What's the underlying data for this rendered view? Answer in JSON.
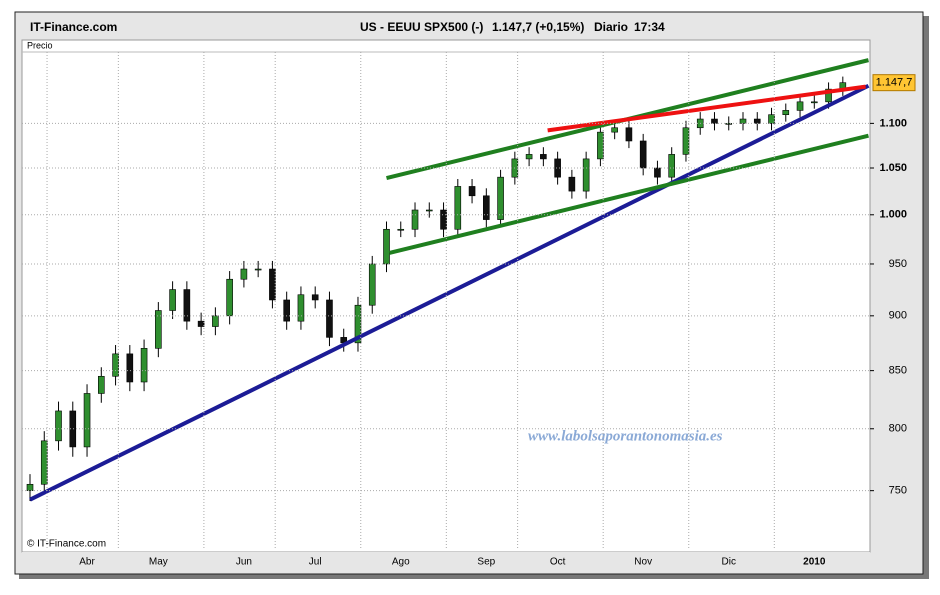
{
  "header": {
    "site": "IT-Finance.com",
    "title": "US - EEUU SPX500 (-)",
    "quote": "1.147,7 (+0,15%)",
    "period": "Diario",
    "time": "17:34"
  },
  "chart_data": {
    "type": "candlestick",
    "ylabel": "Precio",
    "copyright": "© IT-Finance.com",
    "watermark": "www.labolsaporantonomasia.es",
    "categories": [
      null,
      null,
      null,
      null,
      "Abr",
      null,
      null,
      null,
      null,
      "May",
      null,
      null,
      null,
      null,
      null,
      "Jun",
      null,
      null,
      null,
      null,
      "Jul",
      null,
      null,
      null,
      null,
      null,
      "Ago",
      null,
      null,
      null,
      null,
      null,
      "Sep",
      null,
      null,
      null,
      null,
      "Oct",
      null,
      null,
      null,
      null,
      null,
      "Nov",
      null,
      null,
      null,
      null,
      null,
      "Dic",
      null,
      null,
      null,
      null,
      null,
      "2010",
      null,
      null
    ],
    "open": [
      750,
      755,
      790,
      815,
      785,
      830,
      845,
      865,
      840,
      870,
      905,
      925,
      895,
      890,
      900,
      935,
      945,
      945,
      915,
      895,
      920,
      915,
      880,
      875,
      910,
      950,
      985,
      985,
      1005,
      1005,
      985,
      1030,
      1020,
      995,
      1040,
      1060,
      1065,
      1060,
      1040,
      1025,
      1060,
      1090,
      1095,
      1080,
      1050,
      1040,
      1065,
      1095,
      1105,
      1100,
      1100,
      1105,
      1100,
      1110,
      1115,
      1125,
      1125,
      1140
    ],
    "high": [
      763,
      798,
      823,
      823,
      838,
      853,
      873,
      873,
      878,
      913,
      933,
      933,
      903,
      908,
      943,
      953,
      953,
      953,
      923,
      928,
      928,
      923,
      888,
      918,
      958,
      993,
      993,
      1013,
      1013,
      1013,
      1038,
      1038,
      1028,
      1048,
      1068,
      1073,
      1073,
      1068,
      1048,
      1068,
      1098,
      1103,
      1103,
      1088,
      1058,
      1073,
      1103,
      1113,
      1113,
      1108,
      1113,
      1113,
      1118,
      1123,
      1133,
      1133,
      1148,
      1155
    ],
    "low": [
      742,
      747,
      782,
      777,
      777,
      822,
      837,
      832,
      832,
      862,
      897,
      887,
      882,
      882,
      892,
      927,
      937,
      907,
      887,
      887,
      907,
      872,
      867,
      867,
      902,
      942,
      977,
      977,
      997,
      977,
      977,
      1012,
      987,
      987,
      1032,
      1052,
      1052,
      1032,
      1017,
      1017,
      1052,
      1082,
      1072,
      1042,
      1032,
      1032,
      1057,
      1087,
      1092,
      1092,
      1092,
      1092,
      1092,
      1102,
      1107,
      1117,
      1117,
      1132
    ],
    "close": [
      755,
      790,
      815,
      785,
      830,
      845,
      865,
      840,
      870,
      905,
      925,
      895,
      890,
      900,
      935,
      945,
      945,
      915,
      895,
      920,
      915,
      880,
      875,
      910,
      950,
      985,
      985,
      1005,
      1005,
      985,
      1030,
      1020,
      995,
      1040,
      1060,
      1065,
      1060,
      1040,
      1025,
      1060,
      1090,
      1095,
      1080,
      1050,
      1040,
      1065,
      1095,
      1105,
      1100,
      1100,
      1105,
      1100,
      1110,
      1115,
      1125,
      1125,
      1140,
      1147.7
    ],
    "last_value_label": "1.147,7",
    "up_color": "#2f8f2f",
    "down_color": "#111111",
    "log_scale": true,
    "grid": true,
    "ylim": [
      705,
      1185
    ],
    "yticks": [
      750,
      800,
      850,
      900,
      950,
      {
        "value": 1000,
        "label": "1.000"
      },
      {
        "value": 1050,
        "label": "1.050"
      },
      {
        "value": 1100,
        "label": "1.100"
      }
    ],
    "trendlines": [
      {
        "color": "#1c1c96",
        "x": [
          0,
          58.8
        ],
        "values": [
          743,
          1144
        ]
      },
      {
        "color": "#1f7f1f",
        "x": [
          25.0,
          58.8
        ],
        "values": [
          1039,
          1175
        ]
      },
      {
        "color": "#1f7f1f",
        "x": [
          25.2,
          58.8
        ],
        "values": [
          961,
          1086
        ]
      },
      {
        "color": "#ee1111",
        "x": [
          36.3,
          58.6
        ],
        "values": [
          1092,
          1143
        ]
      }
    ]
  }
}
